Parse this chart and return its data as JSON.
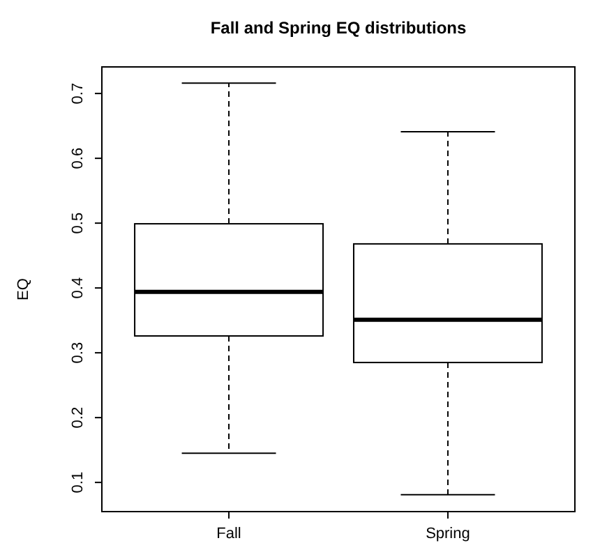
{
  "chart_data": {
    "type": "box",
    "title": "Fall and Spring EQ distributions",
    "ylabel": "EQ",
    "categories": [
      "Fall",
      "Spring"
    ],
    "boxes": [
      {
        "low": 0.145,
        "q1": 0.326,
        "median": 0.394,
        "q3": 0.499,
        "high": 0.716
      },
      {
        "low": 0.081,
        "q1": 0.285,
        "median": 0.351,
        "q3": 0.468,
        "high": 0.641
      }
    ],
    "ylim": [
      0.055,
      0.741
    ],
    "yticks": [
      0.1,
      0.2,
      0.3,
      0.4,
      0.5,
      0.6,
      0.7
    ],
    "grid": false
  }
}
